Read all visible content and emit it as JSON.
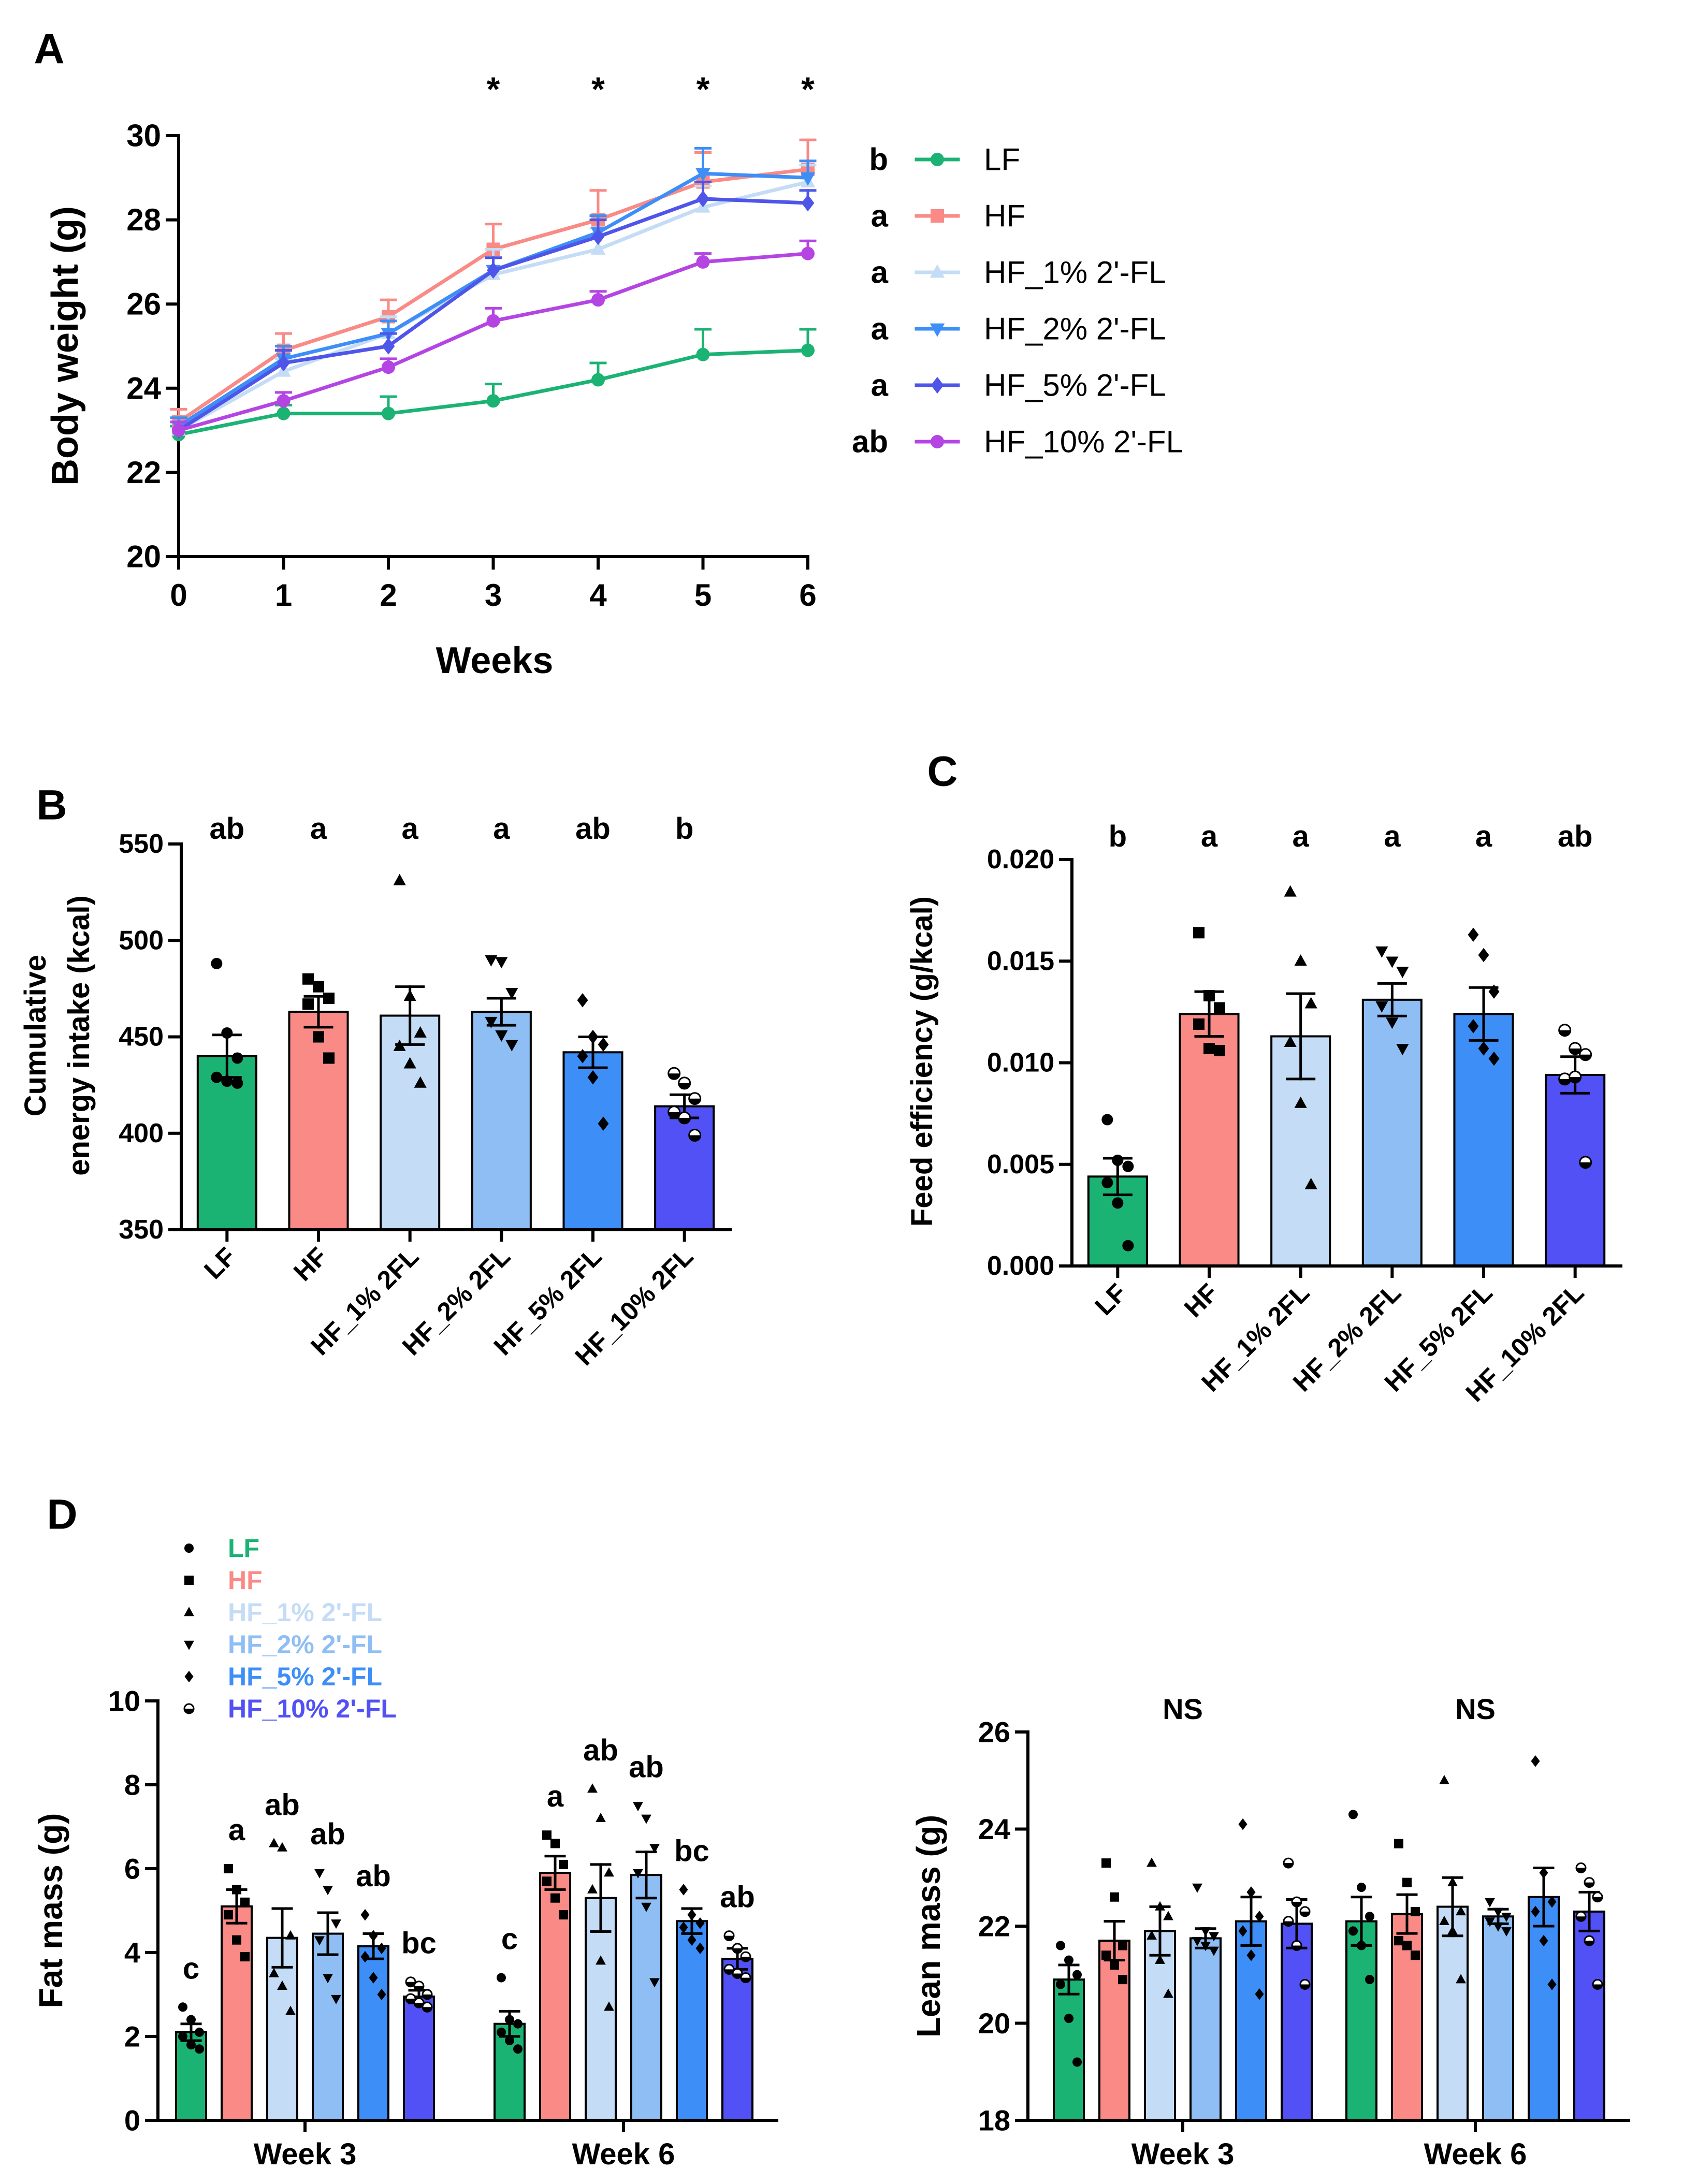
{
  "panel_labels": [
    "A",
    "B",
    "C",
    "D"
  ],
  "colors": {
    "LF": "#1bb373",
    "HF": "#f98a86",
    "HF_1": "#c4dcf5",
    "HF_2": "#8fbef5",
    "HF_5": "#3e8ef7",
    "HF_10": "#5151f5",
    "HF_5_line": "#4f55e8",
    "HF_10_line": "#b545e3"
  },
  "chart_data": [
    {
      "panel": "A",
      "type": "line",
      "xlabel": "Weeks",
      "ylabel": "Body weight (g)",
      "x": [
        0,
        1,
        2,
        3,
        4,
        5,
        6
      ],
      "xlim": [
        0,
        6
      ],
      "ylim": [
        20,
        30
      ],
      "yticks": [
        20,
        22,
        24,
        26,
        28,
        30
      ],
      "significance": [
        "",
        "",
        "",
        "*",
        "*",
        "*",
        "*"
      ],
      "series": [
        {
          "name": "LF",
          "letter": "b",
          "color": "#1bb373",
          "marker": "circle",
          "values": [
            22.9,
            23.4,
            23.4,
            23.7,
            24.2,
            24.8,
            24.9
          ],
          "sem": [
            0.2,
            0.2,
            0.4,
            0.4,
            0.4,
            0.6,
            0.5
          ]
        },
        {
          "name": "HF",
          "letter": "a",
          "color": "#f98a86",
          "marker": "square",
          "values": [
            23.2,
            24.9,
            25.7,
            27.3,
            28.0,
            28.9,
            29.2
          ],
          "sem": [
            0.3,
            0.4,
            0.4,
            0.6,
            0.7,
            0.7,
            0.7
          ]
        },
        {
          "name": "HF_1% 2'-FL",
          "letter": "a",
          "color": "#c4dcf5",
          "marker": "triangle-up",
          "values": [
            23.0,
            24.4,
            25.3,
            26.7,
            27.3,
            28.3,
            28.9
          ],
          "sem": [
            0.2,
            0.3,
            0.4,
            0.6,
            0.5,
            0.5,
            0.4
          ]
        },
        {
          "name": "HF_2% 2'-FL",
          "letter": "a",
          "color": "#3e8ef7",
          "marker": "triangle-down",
          "values": [
            23.1,
            24.7,
            25.3,
            26.8,
            27.7,
            29.1,
            29.0
          ],
          "sem": [
            0.2,
            0.3,
            0.3,
            0.3,
            0.4,
            0.6,
            0.4
          ]
        },
        {
          "name": "HF_5% 2'-FL",
          "letter": "a",
          "color": "#4f55e8",
          "marker": "diamond",
          "values": [
            23.0,
            24.6,
            25.0,
            26.8,
            27.6,
            28.5,
            28.4
          ],
          "sem": [
            0.2,
            0.3,
            0.3,
            0.3,
            0.4,
            0.4,
            0.3
          ]
        },
        {
          "name": "HF_10% 2'-FL",
          "letter": "ab",
          "color": "#b545e3",
          "marker": "circle",
          "values": [
            23.0,
            23.7,
            24.5,
            25.6,
            26.1,
            27.0,
            27.2
          ],
          "sem": [
            0.2,
            0.2,
            0.2,
            0.3,
            0.2,
            0.2,
            0.3
          ]
        }
      ]
    },
    {
      "panel": "B",
      "type": "bar",
      "ylabel": [
        "Cumulative",
        "energy intake (kcal)"
      ],
      "categories": [
        "LF",
        "HF",
        "HF_1% 2FL",
        "HF_2% 2FL",
        "HF_5% 2FL",
        "HF_10% 2FL"
      ],
      "values": [
        440,
        463,
        461,
        463,
        442,
        414
      ],
      "sem": [
        11,
        8,
        15,
        7,
        8,
        6
      ],
      "letters": [
        "ab",
        "a",
        "a",
        "a",
        "ab",
        "b"
      ],
      "points": [
        [
          488,
          452,
          439,
          429,
          427,
          426
        ],
        [
          480,
          476,
          470,
          467,
          450,
          439
        ],
        [
          531,
          471,
          452,
          445,
          436,
          426
        ],
        [
          490,
          489,
          473,
          458,
          451,
          446
        ],
        [
          469,
          450,
          446,
          440,
          429,
          405
        ],
        [
          431,
          426,
          418,
          411,
          408,
          399
        ]
      ],
      "ylim": [
        350,
        550
      ],
      "yticks": [
        350,
        400,
        450,
        500,
        550
      ]
    },
    {
      "panel": "C",
      "type": "bar",
      "ylabel": "Feed efficiency (g/kcal)",
      "categories": [
        "LF",
        "HF",
        "HF_1% 2FL",
        "HF_2% 2FL",
        "HF_5% 2FL",
        "HF_10% 2FL"
      ],
      "values": [
        0.0044,
        0.0124,
        0.0113,
        0.0131,
        0.0124,
        0.0094
      ],
      "sem": [
        0.0009,
        0.0011,
        0.0021,
        0.0008,
        0.0013,
        0.0009
      ],
      "letters": [
        "b",
        "a",
        "a",
        "a",
        "a",
        "ab"
      ],
      "points": [
        [
          0.0072,
          0.0052,
          0.0049,
          0.0041,
          0.0031,
          0.001
        ],
        [
          0.0164,
          0.0133,
          0.0127,
          0.0119,
          0.0107,
          0.0106
        ],
        [
          0.0184,
          0.015,
          0.0129,
          0.011,
          0.008,
          0.004
        ],
        [
          0.0155,
          0.015,
          0.0145,
          0.0128,
          0.012,
          0.0107
        ],
        [
          0.0163,
          0.0153,
          0.0135,
          0.0118,
          0.0107,
          0.0102
        ],
        [
          0.0116,
          0.0107,
          0.0104,
          0.0092,
          0.0093,
          0.0051
        ]
      ],
      "ylim": [
        0,
        0.02
      ],
      "yticks": [
        "0.000",
        "0.005",
        "0.010",
        "0.015",
        "0.020"
      ]
    },
    {
      "panel": "D-left",
      "type": "bar",
      "ylabel": "Fat mass (g)",
      "groups": [
        "Week 3",
        "Week 6"
      ],
      "series_names": [
        "LF",
        "HF",
        "HF_1% 2'-FL",
        "HF_2% 2'-FL",
        "HF_5% 2'-FL",
        "HF_10% 2'-FL"
      ],
      "values": [
        [
          2.1,
          5.1,
          4.35,
          4.45,
          4.15,
          2.95
        ],
        [
          2.3,
          5.9,
          5.3,
          5.85,
          4.75,
          3.85
        ]
      ],
      "sem": [
        [
          0.2,
          0.4,
          0.7,
          0.5,
          0.3,
          0.15
        ],
        [
          0.3,
          0.4,
          0.8,
          0.55,
          0.3,
          0.25
        ]
      ],
      "letters": [
        [
          "c",
          "a",
          "ab",
          "ab",
          "ab",
          "bc"
        ],
        [
          [
            "c"
          ],
          [
            "a"
          ],
          [
            "ab"
          ],
          [
            "ab"
          ],
          [
            "bc"
          ],
          [
            "ab"
          ]
        ]
      ],
      "points": [
        [
          [
            2.7,
            2.4,
            2.1,
            2.0,
            1.8,
            1.7
          ],
          [
            6.0,
            5.5,
            5.2,
            4.9,
            4.3,
            3.9
          ],
          [
            6.6,
            6.5,
            4.4,
            3.5,
            3.2,
            2.6
          ],
          [
            5.9,
            5.5,
            4.7,
            4.3,
            3.4,
            2.9
          ],
          [
            4.9,
            4.4,
            4.1,
            3.9,
            3.4,
            3.0
          ],
          [
            3.3,
            3.2,
            3.0,
            2.9,
            2.8,
            2.7
          ]
        ],
        [
          [
            3.4,
            2.4,
            2.3,
            2.1,
            1.9,
            1.7
          ],
          [
            6.8,
            6.6,
            6.1,
            5.7,
            5.3,
            4.9
          ],
          [
            7.9,
            7.2,
            5.9,
            5.5,
            3.8,
            2.7
          ],
          [
            7.5,
            7.2,
            6.5,
            5.9,
            5.1,
            3.3
          ],
          [
            5.5,
            4.9,
            4.7,
            4.6,
            4.3,
            4.1
          ],
          [
            4.4,
            4.1,
            3.9,
            3.6,
            3.5,
            3.4
          ]
        ]
      ],
      "ylim": [
        0,
        10
      ],
      "yticks": [
        0,
        2,
        4,
        6,
        8,
        10
      ],
      "legend": [
        "LF",
        "HF",
        "HF_1% 2'-FL",
        "HF_2% 2'-FL",
        "HF_5% 2'-FL",
        "HF_10% 2'-FL"
      ]
    },
    {
      "panel": "D-right",
      "type": "bar",
      "ylabel": "Lean mass (g)",
      "groups": [
        "Week 3",
        "Week 6"
      ],
      "values": [
        [
          20.9,
          21.7,
          21.9,
          21.75,
          22.1,
          22.05
        ],
        [
          22.1,
          22.25,
          22.4,
          22.2,
          22.6,
          22.3
        ]
      ],
      "sem": [
        [
          0.3,
          0.4,
          0.5,
          0.2,
          0.5,
          0.5
        ],
        [
          0.5,
          0.4,
          0.6,
          0.15,
          0.6,
          0.4
        ]
      ],
      "annotations": [
        "NS",
        "NS"
      ],
      "points": [
        [
          [
            21.6,
            21.3,
            21.0,
            20.8,
            20.1,
            19.2
          ],
          [
            23.3,
            22.6,
            21.6,
            21.4,
            21.2,
            20.9
          ],
          [
            23.3,
            22.4,
            22.2,
            21.8,
            21.3,
            20.6
          ],
          [
            22.8,
            21.9,
            21.8,
            21.7,
            21.6,
            21.5
          ],
          [
            24.1,
            22.7,
            22.2,
            21.9,
            21.4,
            20.6
          ],
          [
            23.3,
            22.5,
            22.3,
            22.1,
            21.6,
            20.8
          ]
        ],
        [
          [
            24.3,
            22.8,
            22.2,
            21.9,
            21.6,
            20.9
          ],
          [
            23.7,
            22.9,
            22.3,
            21.7,
            21.6,
            21.4
          ],
          [
            25.0,
            22.9,
            22.3,
            22.1,
            21.9,
            20.9
          ],
          [
            22.5,
            22.3,
            22.2,
            22.1,
            22.0,
            21.9
          ],
          [
            25.4,
            23.1,
            22.5,
            22.3,
            21.7,
            20.8
          ],
          [
            23.2,
            22.9,
            22.6,
            22.2,
            21.7,
            20.8
          ]
        ]
      ],
      "ylim": [
        18,
        26
      ],
      "yticks": [
        18,
        20,
        22,
        24,
        26
      ]
    }
  ]
}
